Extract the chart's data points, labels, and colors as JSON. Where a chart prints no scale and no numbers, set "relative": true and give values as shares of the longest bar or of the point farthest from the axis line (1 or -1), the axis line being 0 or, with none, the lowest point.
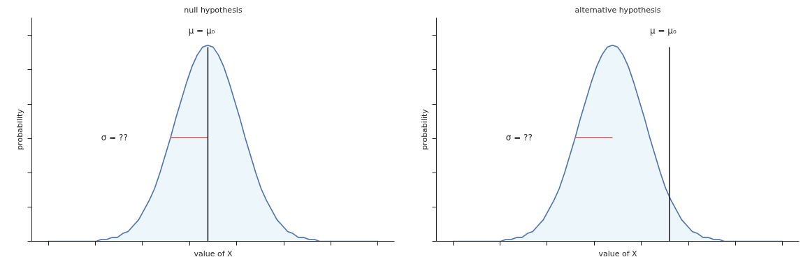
{
  "chart_data": [
    {
      "type": "area",
      "title": "null hypothesis",
      "xlabel": "value of X",
      "ylabel": "probability",
      "relative": true,
      "tick_labels": false,
      "categories": [
        null,
        null,
        null,
        null,
        null,
        null,
        null,
        null,
        null,
        null,
        null,
        null,
        null,
        null,
        null,
        null,
        null,
        null,
        null,
        null,
        null,
        null,
        null,
        null,
        null,
        null,
        null,
        null,
        null,
        null,
        null,
        null,
        null,
        null,
        null,
        null,
        null,
        null,
        null,
        null,
        null,
        null,
        null,
        null,
        null,
        null,
        null,
        null,
        null,
        null,
        null,
        null,
        null,
        null,
        null,
        null,
        null,
        null,
        null,
        null,
        null,
        null,
        null
      ],
      "series": [
        {
          "color": "#4c72b0",
          "values": [
            0,
            0,
            0,
            0,
            0,
            0,
            0,
            0,
            0,
            0,
            0.01,
            0.01,
            0.02,
            0.02,
            0.04,
            0.05,
            0.08,
            0.11,
            0.16,
            0.21,
            0.27,
            0.35,
            0.44,
            0.53,
            0.63,
            0.72,
            0.81,
            0.89,
            0.95,
            0.99,
            1.0,
            0.99,
            0.95,
            0.89,
            0.81,
            0.72,
            0.63,
            0.53,
            0.44,
            0.35,
            0.27,
            0.21,
            0.16,
            0.11,
            0.08,
            0.05,
            0.04,
            0.02,
            0.02,
            0.01,
            0.01,
            0,
            0,
            0,
            0,
            0,
            0,
            0,
            0,
            0,
            0,
            0,
            0
          ]
        },
        {
          "type": "line",
          "color": "#d65f5f",
          "values": [
            null,
            null,
            null,
            null,
            null,
            null,
            null,
            null,
            null,
            null,
            null,
            null,
            null,
            null,
            null,
            null,
            null,
            null,
            null,
            null,
            null,
            null,
            null,
            0.53,
            null,
            null,
            null,
            null,
            null,
            null,
            0.53,
            null,
            null,
            null,
            null,
            null,
            null,
            null,
            null,
            null,
            null,
            null,
            null,
            null,
            null,
            null,
            null,
            null,
            null,
            null,
            null,
            null,
            null,
            null,
            null,
            null,
            null,
            null,
            null,
            null,
            null,
            null,
            null
          ]
        }
      ],
      "annotations": [
        "σ = ??",
        "μ = μ₀"
      ]
    },
    {
      "type": "area",
      "title": "alternative hypothesis",
      "xlabel": "value of X",
      "ylabel": "probability",
      "relative": true,
      "tick_labels": false,
      "categories": [
        null,
        null,
        null,
        null,
        null,
        null,
        null,
        null,
        null,
        null,
        null,
        null,
        null,
        null,
        null,
        null,
        null,
        null,
        null,
        null,
        null,
        null,
        null,
        null,
        null,
        null,
        null,
        null,
        null,
        null,
        null,
        null,
        null,
        null,
        null,
        null,
        null,
        null,
        null,
        null,
        null,
        null,
        null,
        null,
        null,
        null,
        null,
        null,
        null,
        null,
        null,
        null,
        null,
        null,
        null,
        null,
        null,
        null,
        null,
        null,
        null,
        null,
        null
      ],
      "series": [
        {
          "color": "#4c72b0",
          "values": [
            0,
            0,
            0,
            0,
            0,
            0,
            0,
            0,
            0,
            0,
            0.01,
            0.01,
            0.02,
            0.02,
            0.04,
            0.05,
            0.08,
            0.11,
            0.16,
            0.21,
            0.27,
            0.35,
            0.44,
            0.53,
            0.63,
            0.72,
            0.81,
            0.89,
            0.95,
            0.99,
            1.0,
            0.99,
            0.95,
            0.89,
            0.81,
            0.72,
            0.63,
            0.53,
            0.44,
            0.35,
            0.27,
            0.21,
            0.16,
            0.11,
            0.08,
            0.05,
            0.04,
            0.02,
            0.02,
            0.01,
            0.01,
            0,
            0,
            0,
            0,
            0,
            0,
            0,
            0,
            0,
            0,
            0,
            0
          ]
        },
        {
          "type": "line",
          "color": "#d65f5f",
          "values": [
            null,
            null,
            null,
            null,
            null,
            null,
            null,
            null,
            null,
            null,
            null,
            null,
            null,
            null,
            null,
            null,
            null,
            null,
            null,
            null,
            null,
            null,
            null,
            0.53,
            null,
            null,
            null,
            null,
            null,
            null,
            0.53,
            null,
            null,
            null,
            null,
            null,
            null,
            null,
            null,
            null,
            null,
            null,
            null,
            null,
            null,
            null,
            null,
            null,
            null,
            null,
            null,
            null,
            null,
            null,
            null,
            null,
            null,
            null,
            null,
            null,
            null,
            null,
            null
          ]
        }
      ],
      "annotations": [
        "σ = ??",
        "μ = μ₀"
      ]
    }
  ]
}
